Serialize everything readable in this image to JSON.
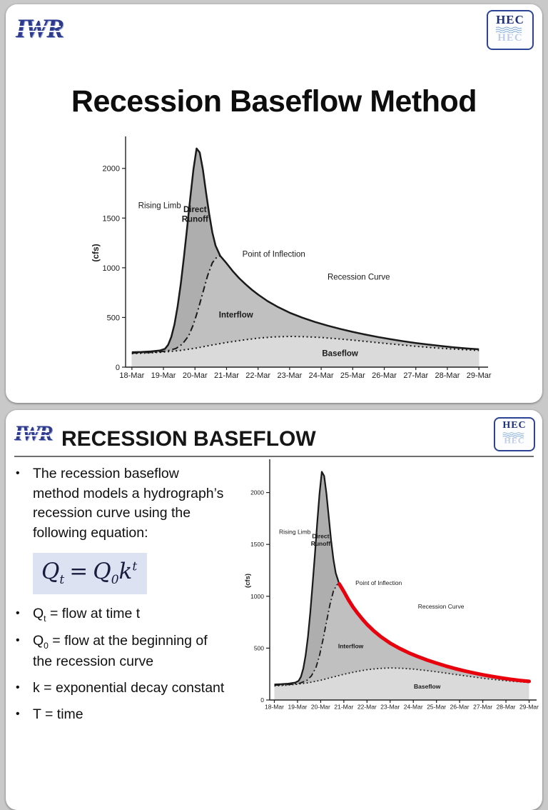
{
  "bullet_char": "•",
  "logos": {
    "iwr": "IWR",
    "hec": "HEC"
  },
  "slide1": {
    "title": "Recession Baseflow Method"
  },
  "slide2": {
    "title": "RECESSION BASEFLOW",
    "bullet_intro": "The recession baseflow method models a hydrograph’s recession curve using the following equation:",
    "equation": {
      "Q1": "Q",
      "sub_t": "t",
      "equals": "=",
      "Q2": "Q",
      "sub_0": "0",
      "k": "k",
      "sup_t": "t"
    },
    "b2": {
      "base": "Q",
      "sub": "t",
      "rest": " = flow at time t"
    },
    "b3": {
      "base": "Q",
      "sub": "0",
      "rest": " = flow at the beginning of the recession curve"
    },
    "b4": "k = exponential decay constant",
    "b5": "T = time"
  },
  "chart_data": {
    "type": "line",
    "title": "",
    "xlabel": "",
    "ylabel": "(cfs)",
    "ylim": [
      0,
      2300
    ],
    "xrange": [
      17.8,
      29.2
    ],
    "yticks": [
      0,
      500,
      1000,
      1500,
      2000
    ],
    "xticks": [
      18,
      19,
      20,
      21,
      22,
      23,
      24,
      25,
      26,
      27,
      28,
      29
    ],
    "xticklabels": [
      "18-Mar",
      "19-Mar",
      "20-Mar",
      "21-Mar",
      "22-Mar",
      "23-Mar",
      "24-Mar",
      "25-Mar",
      "26-Mar",
      "27-Mar",
      "28-Mar",
      "29-Mar"
    ],
    "recession_start": 20.8,
    "colors": {
      "direct_runoff": "#aeaeae",
      "interflow": "#c0c0c0",
      "baseflow": "#dadada",
      "line": "#1a1a1a",
      "recession": "#e8000d",
      "axis": "#222222",
      "text": "#1a1a1a"
    },
    "series": [
      {
        "name": "Total Flow",
        "style": "solid",
        "points": [
          [
            18,
            150
          ],
          [
            18.3,
            153
          ],
          [
            18.6,
            158
          ],
          [
            18.9,
            168
          ],
          [
            19.05,
            185
          ],
          [
            19.15,
            225
          ],
          [
            19.25,
            305
          ],
          [
            19.35,
            430
          ],
          [
            19.45,
            610
          ],
          [
            19.55,
            840
          ],
          [
            19.65,
            1110
          ],
          [
            19.75,
            1400
          ],
          [
            19.85,
            1700
          ],
          [
            19.95,
            1990
          ],
          [
            20.05,
            2200
          ],
          [
            20.15,
            2160
          ],
          [
            20.25,
            1990
          ],
          [
            20.35,
            1760
          ],
          [
            20.45,
            1540
          ],
          [
            20.55,
            1355
          ],
          [
            20.65,
            1225
          ],
          [
            20.8,
            1120
          ],
          [
            21,
            1045
          ],
          [
            21.2,
            965
          ],
          [
            21.4,
            895
          ],
          [
            21.6,
            835
          ],
          [
            21.8,
            780
          ],
          [
            22,
            730
          ],
          [
            22.3,
            665
          ],
          [
            22.6,
            610
          ],
          [
            23,
            548
          ],
          [
            23.4,
            498
          ],
          [
            23.8,
            455
          ],
          [
            24.2,
            418
          ],
          [
            24.6,
            385
          ],
          [
            25,
            355
          ],
          [
            25.4,
            328
          ],
          [
            25.8,
            303
          ],
          [
            26.2,
            281
          ],
          [
            26.6,
            261
          ],
          [
            27,
            243
          ],
          [
            27.4,
            227
          ],
          [
            27.8,
            213
          ],
          [
            28.2,
            200
          ],
          [
            28.6,
            189
          ],
          [
            29,
            180
          ]
        ]
      },
      {
        "name": "Interflow",
        "style": "dashdot",
        "points": [
          [
            18,
            142
          ],
          [
            18.4,
            146
          ],
          [
            18.8,
            152
          ],
          [
            19.1,
            162
          ],
          [
            19.4,
            188
          ],
          [
            19.6,
            232
          ],
          [
            19.8,
            315
          ],
          [
            19.95,
            430
          ],
          [
            20.1,
            580
          ],
          [
            20.25,
            750
          ],
          [
            20.4,
            920
          ],
          [
            20.55,
            1050
          ],
          [
            20.7,
            1110
          ],
          [
            20.8,
            1120
          ]
        ]
      },
      {
        "name": "Baseflow",
        "style": "dotted",
        "points": [
          [
            18,
            136
          ],
          [
            18.5,
            142
          ],
          [
            19,
            152
          ],
          [
            19.5,
            167
          ],
          [
            20,
            190
          ],
          [
            20.5,
            220
          ],
          [
            21,
            248
          ],
          [
            21.5,
            272
          ],
          [
            22,
            292
          ],
          [
            22.5,
            304
          ],
          [
            23,
            309
          ],
          [
            23.5,
            306
          ],
          [
            24,
            298
          ],
          [
            24.5,
            286
          ],
          [
            25,
            272
          ],
          [
            25.5,
            256
          ],
          [
            26,
            240
          ],
          [
            26.5,
            225
          ],
          [
            27,
            210
          ],
          [
            27.5,
            197
          ],
          [
            28,
            186
          ],
          [
            28.5,
            176
          ],
          [
            29,
            168
          ]
        ]
      }
    ],
    "annotations": [
      {
        "lines": [
          "Rising Limb"
        ],
        "x": 18.2,
        "y": 1600,
        "anchor": "start",
        "bold": false
      },
      {
        "lines": [
          "Direct",
          "Runoff"
        ],
        "x": 20.0,
        "y": 1560,
        "anchor": "middle",
        "bold": true
      },
      {
        "lines": [
          "Point of Inflection"
        ],
        "x": 21.5,
        "y": 1110,
        "anchor": "start",
        "bold": false
      },
      {
        "lines": [
          "Recession Curve"
        ],
        "x": 24.2,
        "y": 880,
        "anchor": "start",
        "bold": false
      },
      {
        "lines": [
          "Interflow"
        ],
        "x": 21.3,
        "y": 500,
        "anchor": "middle",
        "bold": true
      },
      {
        "lines": [
          "Baseflow"
        ],
        "x": 24.6,
        "y": 110,
        "anchor": "middle",
        "bold": true
      }
    ]
  }
}
